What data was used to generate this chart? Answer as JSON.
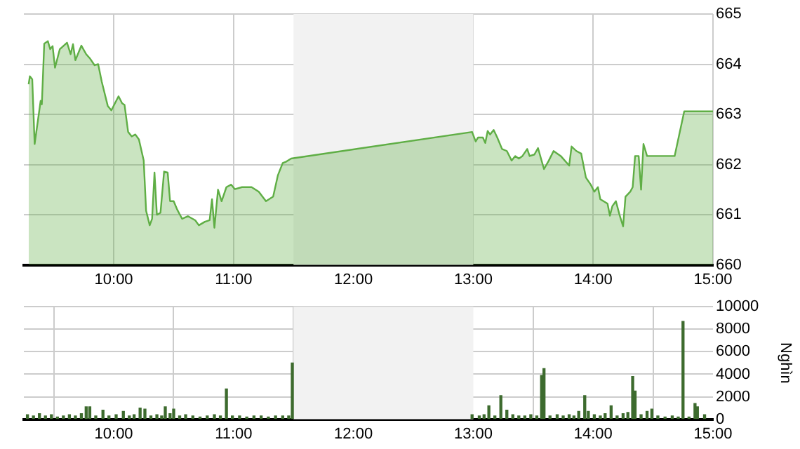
{
  "chart_data": [
    {
      "type": "area",
      "color": "#5fae45",
      "xlim": [
        9.25,
        15
      ],
      "ylim": [
        660,
        665
      ],
      "grid": true,
      "marker": "none",
      "xticks": [
        {
          "value": 10,
          "label": "10:00"
        },
        {
          "value": 11,
          "label": "11:00"
        },
        {
          "value": 12,
          "label": "12:00"
        },
        {
          "value": 13,
          "label": "13:00"
        },
        {
          "value": 14,
          "label": "14:00"
        },
        {
          "value": 15,
          "label": "15:00"
        }
      ],
      "yticks": [
        660,
        661,
        662,
        663,
        664,
        665
      ],
      "bands": [
        {
          "axis": "x",
          "from": 11.5,
          "to": 13,
          "color": "#f2f2f2"
        }
      ],
      "x": [
        9.29,
        9.3,
        9.32,
        9.34,
        9.39,
        9.4,
        9.42,
        9.45,
        9.47,
        9.49,
        9.51,
        9.55,
        9.61,
        9.64,
        9.66,
        9.68,
        9.73,
        9.77,
        9.8,
        9.84,
        9.87,
        9.9,
        9.95,
        9.98,
        10.04,
        10.07,
        10.09,
        10.12,
        10.15,
        10.18,
        10.21,
        10.25,
        10.27,
        10.3,
        10.32,
        10.34,
        10.36,
        10.39,
        10.42,
        10.45,
        10.47,
        10.5,
        10.53,
        10.57,
        10.62,
        10.68,
        10.71,
        10.76,
        10.8,
        10.82,
        10.84,
        10.87,
        10.9,
        10.94,
        10.98,
        11.01,
        11.07,
        11.15,
        11.21,
        11.27,
        11.33,
        11.37,
        11.41,
        11.44,
        11.48,
        12.99,
        13.02,
        13.04,
        13.08,
        13.1,
        13.12,
        13.14,
        13.17,
        13.2,
        13.24,
        13.28,
        13.32,
        13.35,
        13.38,
        13.41,
        13.45,
        13.47,
        13.51,
        13.54,
        13.59,
        13.63,
        13.67,
        13.73,
        13.8,
        13.82,
        13.86,
        13.9,
        13.94,
        13.98,
        14.01,
        14.04,
        14.06,
        14.12,
        14.14,
        14.16,
        14.19,
        14.22,
        14.25,
        14.27,
        14.31,
        14.33,
        14.35,
        14.38,
        14.4,
        14.42,
        14.45,
        14.49,
        14.68,
        14.76,
        15
      ],
      "values": [
        663.6,
        663.76,
        663.7,
        662.41,
        663.27,
        663.2,
        664.41,
        664.46,
        664.3,
        664.36,
        663.93,
        664.3,
        664.43,
        664.2,
        664.4,
        664.08,
        664.37,
        664.2,
        664.12,
        663.98,
        664.0,
        663.65,
        663.17,
        663.08,
        663.36,
        663.22,
        663.19,
        662.65,
        662.56,
        662.6,
        662.5,
        662.08,
        661.08,
        660.79,
        660.92,
        661.84,
        661.0,
        661.04,
        661.86,
        661.84,
        661.27,
        661.27,
        661.1,
        660.92,
        660.97,
        660.89,
        660.79,
        660.86,
        660.89,
        661.31,
        660.74,
        661.5,
        661.27,
        661.55,
        661.6,
        661.51,
        661.55,
        661.55,
        661.46,
        661.27,
        661.36,
        661.79,
        662.03,
        662.06,
        662.12,
        662.65,
        662.46,
        662.54,
        662.54,
        662.43,
        662.67,
        662.6,
        662.69,
        662.54,
        662.31,
        662.27,
        662.08,
        662.17,
        662.12,
        662.17,
        662.31,
        662.17,
        662.2,
        662.33,
        661.91,
        662.08,
        662.27,
        662.17,
        661.98,
        662.36,
        662.27,
        662.22,
        661.74,
        661.6,
        661.46,
        661.55,
        661.31,
        661.22,
        660.98,
        661.17,
        661.27,
        661.0,
        660.77,
        661.36,
        661.46,
        661.55,
        662.17,
        662.17,
        661.5,
        662.41,
        662.17,
        662.17,
        662.17,
        663.06,
        663.06
      ]
    },
    {
      "type": "bar",
      "color": "#3d6b2e",
      "xlim": [
        9.25,
        15
      ],
      "ylim": [
        0,
        10000
      ],
      "grid": true,
      "y2label": "Nghìn",
      "xticks": [
        {
          "value": 10,
          "label": "10:00"
        },
        {
          "value": 11,
          "label": "11:00"
        },
        {
          "value": 12,
          "label": "12:00"
        },
        {
          "value": 13,
          "label": "13:00"
        },
        {
          "value": 14,
          "label": "14:00"
        },
        {
          "value": 15,
          "label": "15:00"
        }
      ],
      "yticks": [
        0,
        2000,
        4000,
        6000,
        8000,
        10000
      ],
      "bands": [
        {
          "axis": "x",
          "from": 11.5,
          "to": 13,
          "color": "#f2f2f2"
        }
      ],
      "x": [
        9.28,
        9.33,
        9.38,
        9.43,
        9.48,
        9.53,
        9.58,
        9.63,
        9.68,
        9.73,
        9.77,
        9.8,
        9.85,
        9.91,
        9.96,
        10.02,
        10.08,
        10.13,
        10.17,
        10.22,
        10.26,
        10.31,
        10.36,
        10.4,
        10.43,
        10.47,
        10.5,
        10.55,
        10.6,
        10.66,
        10.72,
        10.78,
        10.84,
        10.89,
        10.94,
        10.99,
        11.05,
        11.11,
        11.17,
        11.23,
        11.29,
        11.35,
        11.41,
        11.46,
        11.49,
        12.99,
        13.05,
        13.09,
        13.13,
        13.18,
        13.23,
        13.28,
        13.33,
        13.38,
        13.43,
        13.48,
        13.53,
        13.57,
        13.59,
        13.64,
        13.7,
        13.75,
        13.8,
        13.84,
        13.88,
        13.93,
        13.96,
        14.01,
        14.06,
        14.1,
        14.15,
        14.2,
        14.25,
        14.29,
        14.33,
        14.35,
        14.4,
        14.45,
        14.49,
        14.54,
        14.6,
        14.66,
        14.71,
        14.75,
        14.8,
        14.85,
        14.87,
        14.93
      ],
      "values": [
        400,
        300,
        500,
        300,
        400,
        200,
        300,
        400,
        300,
        500,
        1100,
        1100,
        300,
        800,
        300,
        400,
        700,
        300,
        400,
        1000,
        900,
        300,
        400,
        300,
        1100,
        500,
        900,
        300,
        400,
        300,
        200,
        300,
        400,
        300,
        2700,
        300,
        300,
        200,
        300,
        300,
        200,
        300,
        300,
        300,
        5000,
        400,
        300,
        400,
        1200,
        300,
        2100,
        800,
        400,
        300,
        300,
        400,
        300,
        3900,
        4500,
        300,
        400,
        300,
        400,
        300,
        700,
        2100,
        700,
        400,
        300,
        500,
        1200,
        300,
        500,
        600,
        3800,
        2500,
        400,
        700,
        900,
        300,
        200,
        300,
        200,
        8700,
        200,
        1400,
        1100,
        400
      ]
    }
  ]
}
